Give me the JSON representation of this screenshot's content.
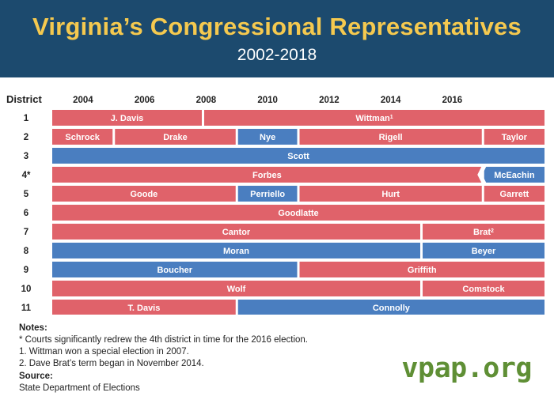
{
  "header": {
    "title": "Virginia’s Congressional Representatives",
    "subtitle": "2002-2018"
  },
  "chart_data": {
    "type": "timeline",
    "title": "Virginia’s Congressional Representatives",
    "subtitle": "2002-2018",
    "row_header": "District",
    "x_ticks": [
      "2004",
      "2006",
      "2008",
      "2010",
      "2012",
      "2014",
      "2016"
    ],
    "x_range": [
      2003,
      2019
    ],
    "party_colors": {
      "R": "#e0626a",
      "D": "#4a7ec0"
    },
    "rows": [
      {
        "district": "1",
        "terms": [
          {
            "name": "J. Davis",
            "party": "R",
            "start": 2003,
            "end": 2007.9
          },
          {
            "name": "Wittman",
            "sup": "1",
            "party": "R",
            "start": 2007.9,
            "end": 2019
          }
        ]
      },
      {
        "district": "2",
        "terms": [
          {
            "name": "Schrock",
            "party": "R",
            "start": 2003,
            "end": 2005
          },
          {
            "name": "Drake",
            "party": "R",
            "start": 2005,
            "end": 2009
          },
          {
            "name": "Nye",
            "party": "D",
            "start": 2009,
            "end": 2011
          },
          {
            "name": "Rigell",
            "party": "R",
            "start": 2011,
            "end": 2017
          },
          {
            "name": "Taylor",
            "party": "R",
            "start": 2017,
            "end": 2019
          }
        ]
      },
      {
        "district": "3",
        "terms": [
          {
            "name": "Scott",
            "party": "D",
            "start": 2003,
            "end": 2019
          }
        ]
      },
      {
        "district": "4*",
        "terms": [
          {
            "name": "Forbes",
            "party": "R",
            "start": 2003,
            "end": 2017
          },
          {
            "name": "McEachin",
            "party": "D",
            "start": 2017,
            "end": 2019
          }
        ]
      },
      {
        "district": "5",
        "terms": [
          {
            "name": "Goode",
            "party": "R",
            "start": 2003,
            "end": 2009
          },
          {
            "name": "Perriello",
            "party": "D",
            "start": 2009,
            "end": 2011
          },
          {
            "name": "Hurt",
            "party": "R",
            "start": 2011,
            "end": 2017
          },
          {
            "name": "Garrett",
            "party": "R",
            "start": 2017,
            "end": 2019
          }
        ]
      },
      {
        "district": "6",
        "terms": [
          {
            "name": "Goodlatte",
            "party": "R",
            "start": 2003,
            "end": 2019
          }
        ]
      },
      {
        "district": "7",
        "terms": [
          {
            "name": "Cantor",
            "party": "R",
            "start": 2003,
            "end": 2015
          },
          {
            "name": "Brat",
            "sup": "2",
            "party": "R",
            "start": 2015,
            "end": 2019
          }
        ]
      },
      {
        "district": "8",
        "terms": [
          {
            "name": "Moran",
            "party": "D",
            "start": 2003,
            "end": 2015
          },
          {
            "name": "Beyer",
            "party": "D",
            "start": 2015,
            "end": 2019
          }
        ]
      },
      {
        "district": "9",
        "terms": [
          {
            "name": "Boucher",
            "party": "D",
            "start": 2003,
            "end": 2011
          },
          {
            "name": "Griffith",
            "party": "R",
            "start": 2011,
            "end": 2019
          }
        ]
      },
      {
        "district": "10",
        "terms": [
          {
            "name": "Wolf",
            "party": "R",
            "start": 2003,
            "end": 2015
          },
          {
            "name": "Comstock",
            "party": "R",
            "start": 2015,
            "end": 2019
          }
        ]
      },
      {
        "district": "11",
        "terms": [
          {
            "name": "T. Davis",
            "party": "R",
            "start": 2003,
            "end": 2009
          },
          {
            "name": "Connolly",
            "party": "D",
            "start": 2009,
            "end": 2019
          }
        ]
      }
    ]
  },
  "notes": {
    "label": "Notes:",
    "lines": [
      "* Courts significantly redrew the 4th district in time for the 2016 election.",
      "1. Wittman won a special election in 2007.",
      "2. Dave Brat’s term began in November 2014."
    ],
    "source_label": "Source:",
    "source": "State Department of Elections"
  },
  "logo": "vpap.org"
}
